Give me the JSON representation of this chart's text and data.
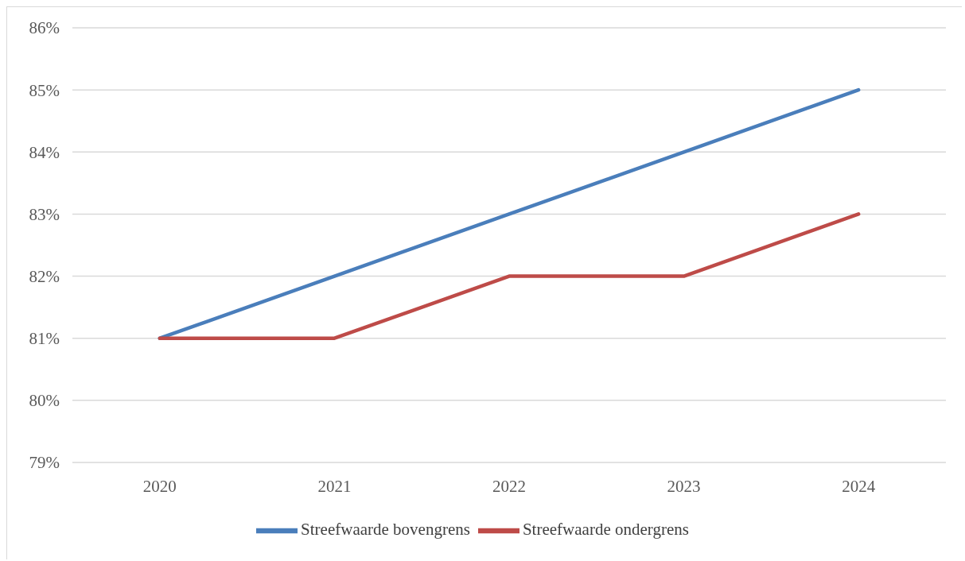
{
  "chart_data": {
    "type": "line",
    "categories": [
      "2020",
      "2021",
      "2022",
      "2023",
      "2024"
    ],
    "series": [
      {
        "name": "Streefwaarde bovengrens",
        "color": "#4a7ebb",
        "values": [
          81,
          82,
          83,
          84,
          85
        ]
      },
      {
        "name": "Streefwaarde ondergrens",
        "color": "#be4b48",
        "values": [
          81,
          81,
          82,
          82,
          83
        ]
      }
    ],
    "ylim": [
      79,
      86
    ],
    "yticks": [
      {
        "value": 79,
        "label": "79%"
      },
      {
        "value": 80,
        "label": "80%"
      },
      {
        "value": 81,
        "label": "81%"
      },
      {
        "value": 82,
        "label": "82%"
      },
      {
        "value": 83,
        "label": "83%"
      },
      {
        "value": 84,
        "label": "84%"
      },
      {
        "value": 85,
        "label": "85%"
      },
      {
        "value": 86,
        "label": "86%"
      }
    ],
    "grid": "y",
    "legend": "bottom",
    "marker": "none",
    "line_style": "solid"
  }
}
